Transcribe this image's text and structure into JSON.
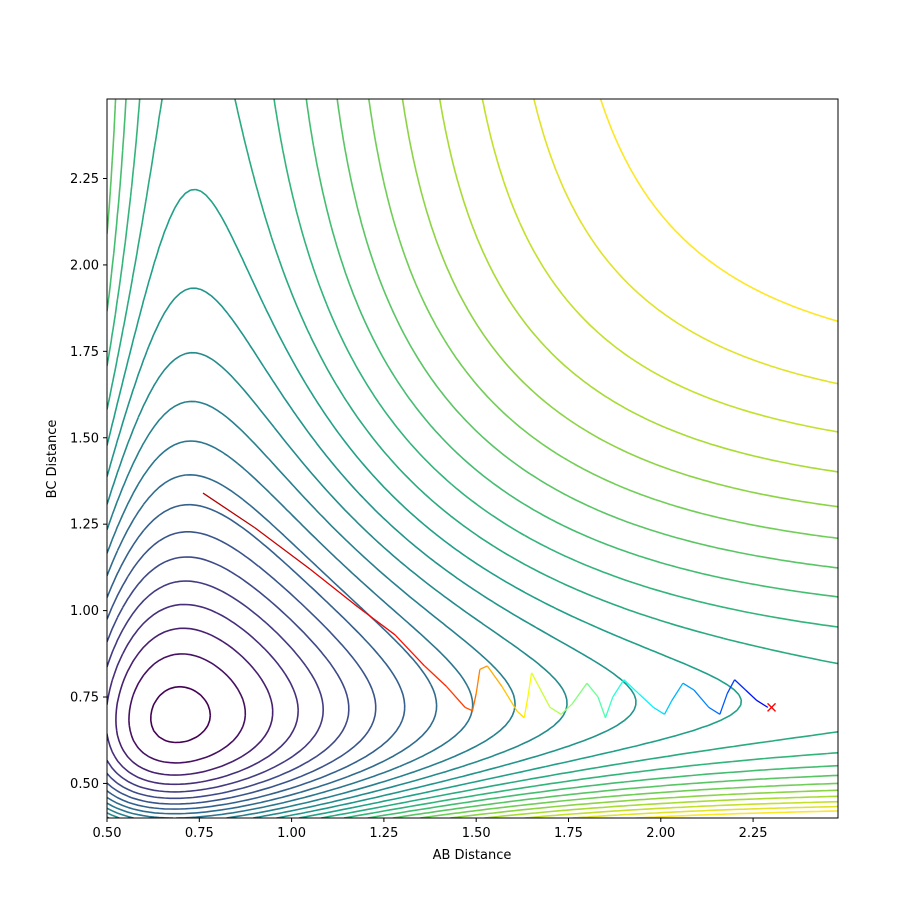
{
  "chart_data": {
    "type": "contour",
    "title": "",
    "xlabel": "AB Distance",
    "ylabel": "BC Distance",
    "xlim": [
      0.5,
      2.48
    ],
    "ylim": [
      0.4,
      2.48
    ],
    "xticks": [
      "0.50",
      "0.75",
      "1.00",
      "1.25",
      "1.50",
      "1.75",
      "2.00",
      "2.25"
    ],
    "yticks": [
      "0.50",
      "0.75",
      "1.00",
      "1.25",
      "1.50",
      "1.75",
      "2.00",
      "2.25"
    ],
    "grid": false,
    "legend": "none",
    "colormap": "viridis",
    "contour_levels": 24,
    "trajectory": {
      "points": [
        [
          0.76,
          1.34
        ],
        [
          0.9,
          1.24
        ],
        [
          1.05,
          1.12
        ],
        [
          1.18,
          1.01
        ],
        [
          1.28,
          0.93
        ],
        [
          1.36,
          0.84
        ],
        [
          1.42,
          0.78
        ],
        [
          1.47,
          0.72
        ],
        [
          1.49,
          0.71
        ],
        [
          1.5,
          0.76
        ],
        [
          1.51,
          0.83
        ],
        [
          1.53,
          0.84
        ],
        [
          1.57,
          0.78
        ],
        [
          1.61,
          0.71
        ],
        [
          1.63,
          0.69
        ],
        [
          1.64,
          0.75
        ],
        [
          1.65,
          0.82
        ],
        [
          1.67,
          0.78
        ],
        [
          1.7,
          0.72
        ],
        [
          1.73,
          0.7
        ],
        [
          1.76,
          0.73
        ],
        [
          1.8,
          0.79
        ],
        [
          1.83,
          0.75
        ],
        [
          1.85,
          0.69
        ],
        [
          1.87,
          0.75
        ],
        [
          1.9,
          0.8
        ],
        [
          1.94,
          0.76
        ],
        [
          1.98,
          0.72
        ],
        [
          2.01,
          0.7
        ],
        [
          2.03,
          0.74
        ],
        [
          2.06,
          0.79
        ],
        [
          2.09,
          0.77
        ],
        [
          2.13,
          0.72
        ],
        [
          2.16,
          0.7
        ],
        [
          2.18,
          0.76
        ],
        [
          2.2,
          0.8
        ],
        [
          2.23,
          0.77
        ],
        [
          2.26,
          0.74
        ],
        [
          2.29,
          0.72
        ]
      ],
      "end_marker": [
        2.3,
        0.72
      ],
      "end_marker_color": "#ff0000"
    }
  }
}
